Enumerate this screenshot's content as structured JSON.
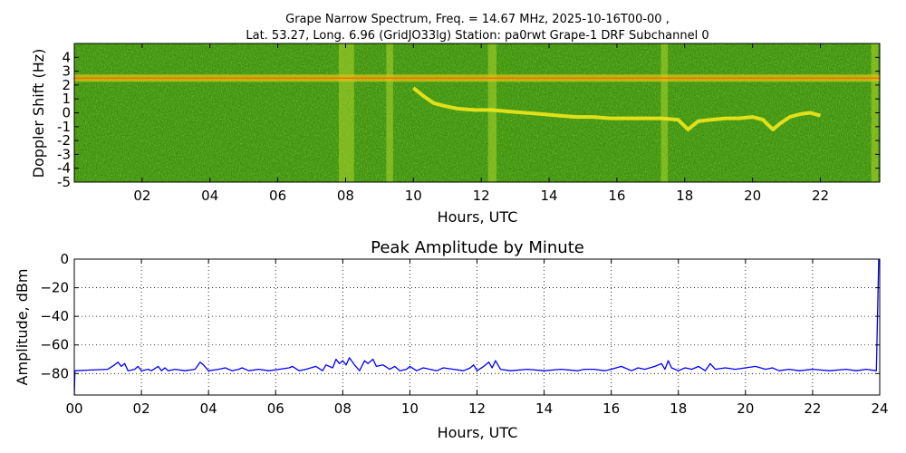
{
  "title_line1": "Grape Narrow Spectrum, Freq. = 14.67 MHz, 2025-10-16T00-00 ,",
  "title_line2": "Lat.  53.27, Long.   6.96 (GridJO33lg) Station: pa0rwt Grape-1 DRF Subchannel 0",
  "colors": {
    "spectrum_background": "#3d8a0f",
    "spectrum_speckle_light": "#7ec41a",
    "spectrum_speckle_dark": "#1f5a08",
    "spectrum_vertical_band": "#c9d82a",
    "carrier_line": "#ff6a00",
    "doppler_trace": "#f2e81a",
    "amplitude_line": "#0000ff",
    "grid": "#000000"
  },
  "chart_data": [
    {
      "type": "heatmap",
      "title": "",
      "xlabel": "Hours, UTC",
      "ylabel": "Doppler Shift (Hz)",
      "xlim": [
        0,
        23.75
      ],
      "ylim": [
        -5,
        5
      ],
      "x_ticks": [
        "02",
        "04",
        "06",
        "08",
        "10",
        "12",
        "14",
        "16",
        "18",
        "20",
        "22"
      ],
      "x_tick_values": [
        2,
        4,
        6,
        8,
        10,
        12,
        14,
        16,
        18,
        20,
        22
      ],
      "y_ticks": [
        "4",
        "3",
        "2",
        "1",
        "0",
        "-1",
        "-2",
        "-3",
        "-4",
        "-5"
      ],
      "y_tick_values": [
        4,
        3,
        2,
        1,
        0,
        -1,
        -2,
        -3,
        -4,
        -5
      ],
      "carrier_hz": 2.5,
      "bright_bands_hours": [
        [
          7.8,
          8.25
        ],
        [
          9.2,
          9.4
        ],
        [
          12.2,
          12.45
        ],
        [
          17.3,
          17.5
        ],
        [
          23.5,
          23.7
        ]
      ],
      "doppler_trace": {
        "x": [
          10.0,
          10.3,
          10.6,
          10.9,
          11.3,
          11.8,
          12.3,
          12.8,
          13.3,
          13.8,
          14.3,
          14.8,
          15.3,
          15.8,
          16.3,
          16.8,
          17.3,
          17.8,
          18.1,
          18.4,
          18.8,
          19.2,
          19.6,
          20.0,
          20.3,
          20.6,
          20.8,
          21.1,
          21.4,
          21.7,
          22.0
        ],
        "y": [
          1.8,
          1.2,
          0.7,
          0.5,
          0.3,
          0.2,
          0.2,
          0.1,
          0.0,
          -0.1,
          -0.2,
          -0.3,
          -0.3,
          -0.4,
          -0.4,
          -0.4,
          -0.4,
          -0.5,
          -1.2,
          -0.6,
          -0.5,
          -0.4,
          -0.4,
          -0.3,
          -0.5,
          -1.2,
          -0.8,
          -0.3,
          -0.1,
          0.0,
          -0.2
        ]
      }
    },
    {
      "type": "line",
      "title": "Peak Amplitude by Minute",
      "xlabel": "Hours, UTC",
      "ylabel": "Amplitude, dBm",
      "xlim": [
        0,
        24
      ],
      "ylim": [
        -95,
        0
      ],
      "grid": true,
      "x_ticks": [
        "00",
        "02",
        "04",
        "06",
        "08",
        "10",
        "12",
        "14",
        "16",
        "18",
        "20",
        "22",
        "24"
      ],
      "x_tick_values": [
        0,
        2,
        4,
        6,
        8,
        10,
        12,
        14,
        16,
        18,
        20,
        22,
        24
      ],
      "y_ticks": [
        "0",
        "−20",
        "−40",
        "−60",
        "−80"
      ],
      "y_tick_values": [
        0,
        -20,
        -40,
        -60,
        -80
      ],
      "series": [
        {
          "x": [
            0,
            0.02,
            0.5,
            1.0,
            1.2,
            1.3,
            1.4,
            1.5,
            1.6,
            1.8,
            1.9,
            2.0,
            2.2,
            2.3,
            2.5,
            2.6,
            2.7,
            2.8,
            3.0,
            3.3,
            3.6,
            3.75,
            3.85,
            4.0,
            4.3,
            4.5,
            4.7,
            4.9,
            5.0,
            5.2,
            5.5,
            5.8,
            6.1,
            6.4,
            6.5,
            6.7,
            6.9,
            7.2,
            7.4,
            7.5,
            7.7,
            7.8,
            7.9,
            8.0,
            8.1,
            8.2,
            8.35,
            8.5,
            8.65,
            8.75,
            8.9,
            9.0,
            9.2,
            9.4,
            9.55,
            9.7,
            9.9,
            10.0,
            10.2,
            10.4,
            10.6,
            10.8,
            11.0,
            11.3,
            11.6,
            11.8,
            11.9,
            12.0,
            12.2,
            12.35,
            12.45,
            12.55,
            12.7,
            13.0,
            13.5,
            14.0,
            14.5,
            15.0,
            15.2,
            15.5,
            15.8,
            16.0,
            16.3,
            16.6,
            16.8,
            17.0,
            17.3,
            17.5,
            17.6,
            17.7,
            17.8,
            18.0,
            18.2,
            18.4,
            18.6,
            18.8,
            18.95,
            19.1,
            19.4,
            19.7,
            20.0,
            20.3,
            20.6,
            20.8,
            21.0,
            21.3,
            21.6,
            22.0,
            22.5,
            23.0,
            23.3,
            23.6,
            23.9,
            23.97,
            24.0
          ],
          "y": [
            -95,
            -78,
            -77.5,
            -77,
            -74,
            -72,
            -75,
            -73,
            -78,
            -77,
            -75,
            -78,
            -77,
            -78,
            -75,
            -78,
            -76,
            -78,
            -77,
            -78,
            -77,
            -72,
            -74,
            -78,
            -77,
            -76,
            -78,
            -77,
            -76,
            -78,
            -77,
            -78,
            -77,
            -76,
            -75,
            -78,
            -77,
            -75,
            -78,
            -74,
            -76,
            -70,
            -73,
            -71,
            -74,
            -69,
            -74,
            -78,
            -71,
            -73,
            -70,
            -75,
            -74,
            -77,
            -75,
            -78,
            -77,
            -75,
            -78,
            -76,
            -77,
            -78,
            -76,
            -77,
            -78,
            -76,
            -74,
            -78,
            -75,
            -72,
            -76,
            -71,
            -77,
            -78,
            -77,
            -78,
            -77,
            -78,
            -77,
            -77,
            -78,
            -77,
            -75,
            -78,
            -76,
            -77,
            -75,
            -73,
            -77,
            -71,
            -76,
            -78,
            -76,
            -77,
            -75,
            -78,
            -73,
            -77,
            -76,
            -77,
            -76,
            -75,
            -77,
            -76,
            -78,
            -77,
            -78,
            -77,
            -78,
            -77,
            -78,
            -77,
            -78,
            0,
            0
          ]
        }
      ]
    }
  ]
}
